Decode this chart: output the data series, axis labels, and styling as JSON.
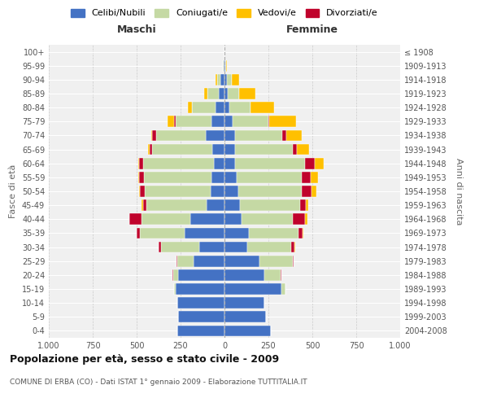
{
  "age_groups": [
    "0-4",
    "5-9",
    "10-14",
    "15-19",
    "20-24",
    "25-29",
    "30-34",
    "35-39",
    "40-44",
    "45-49",
    "50-54",
    "55-59",
    "60-64",
    "65-69",
    "70-74",
    "75-79",
    "80-84",
    "85-89",
    "90-94",
    "95-99",
    "100+"
  ],
  "birth_years": [
    "2004-2008",
    "1999-2003",
    "1994-1998",
    "1989-1993",
    "1984-1988",
    "1979-1983",
    "1974-1978",
    "1969-1973",
    "1964-1968",
    "1959-1963",
    "1954-1958",
    "1949-1953",
    "1944-1948",
    "1939-1943",
    "1934-1938",
    "1929-1933",
    "1924-1928",
    "1919-1923",
    "1914-1918",
    "1909-1913",
    "≤ 1908"
  ],
  "males_celibe": [
    270,
    265,
    270,
    280,
    265,
    175,
    145,
    225,
    195,
    100,
    78,
    73,
    58,
    68,
    105,
    75,
    50,
    32,
    22,
    5,
    2
  ],
  "males_coniugato": [
    0,
    0,
    0,
    5,
    28,
    95,
    215,
    255,
    275,
    345,
    375,
    385,
    405,
    345,
    285,
    205,
    135,
    65,
    18,
    3,
    0
  ],
  "males_vedovo": [
    0,
    0,
    0,
    0,
    0,
    0,
    0,
    0,
    0,
    5,
    5,
    5,
    5,
    8,
    5,
    38,
    22,
    20,
    10,
    2,
    0
  ],
  "males_divorziato": [
    0,
    0,
    0,
    0,
    5,
    5,
    15,
    18,
    70,
    20,
    30,
    30,
    25,
    15,
    20,
    5,
    0,
    0,
    0,
    0,
    0
  ],
  "females_nubile": [
    262,
    238,
    228,
    325,
    228,
    198,
    128,
    138,
    98,
    88,
    78,
    68,
    58,
    58,
    58,
    48,
    28,
    20,
    15,
    5,
    2
  ],
  "females_coniugata": [
    0,
    0,
    0,
    20,
    92,
    192,
    252,
    282,
    292,
    342,
    362,
    372,
    402,
    332,
    272,
    202,
    122,
    62,
    25,
    4,
    0
  ],
  "females_vedova": [
    0,
    0,
    0,
    0,
    0,
    0,
    5,
    5,
    10,
    15,
    27,
    42,
    52,
    72,
    92,
    152,
    132,
    92,
    42,
    5,
    0
  ],
  "females_divorziata": [
    0,
    0,
    0,
    0,
    5,
    5,
    20,
    25,
    70,
    32,
    55,
    52,
    52,
    20,
    20,
    5,
    0,
    0,
    0,
    0,
    0
  ],
  "color_celibe": "#4472c4",
  "color_coniugato": "#c5d9a4",
  "color_vedovo": "#ffc000",
  "color_divorziato": "#c0032c",
  "title": "Popolazione per età, sesso e stato civile - 2009",
  "subtitle": "COMUNE DI ERBA (CO) - Dati ISTAT 1° gennaio 2009 - Elaborazione TUTTITALIA.IT",
  "legend_labels": [
    "Celibi/Nubili",
    "Coniugati/e",
    "Vedovi/e",
    "Divorziati/e"
  ],
  "ylabel_left": "Fasce di età",
  "ylabel_right": "Anni di nascita",
  "label_maschi": "Maschi",
  "label_femmine": "Femmine"
}
